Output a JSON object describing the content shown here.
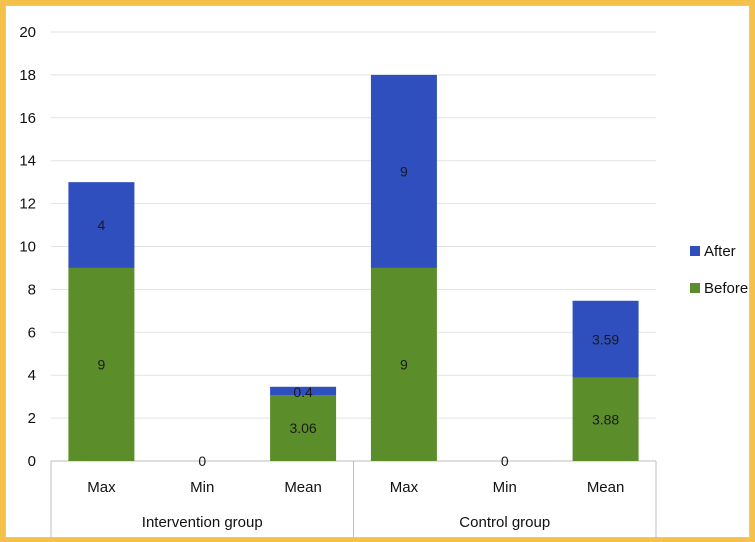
{
  "chart_data": {
    "type": "bar",
    "stacked": true,
    "ylim": [
      0,
      20
    ],
    "yticks": [
      0,
      2,
      4,
      6,
      8,
      10,
      12,
      14,
      16,
      18,
      20
    ],
    "grid": true,
    "legend_position": "right",
    "groups": [
      {
        "label": "Intervention group",
        "categories": [
          "Max",
          "Min",
          "Mean"
        ]
      },
      {
        "label": "Control group",
        "categories": [
          "Max",
          "Min",
          "Mean"
        ]
      }
    ],
    "categories": [
      "Max",
      "Min",
      "Mean",
      "Max",
      "Min",
      "Mean"
    ],
    "series": [
      {
        "name": "Before",
        "color": "#5b8e2b",
        "values": [
          9,
          0,
          3.06,
          9,
          0,
          3.88
        ],
        "labels": [
          "9",
          "0",
          "3.06",
          "9",
          "0",
          "3.88"
        ]
      },
      {
        "name": "After",
        "color": "#2f4fbf",
        "values": [
          4,
          0,
          0.4,
          9,
          0,
          3.59
        ],
        "labels": [
          "4",
          "",
          "0.4",
          "9",
          "",
          "3.59"
        ]
      }
    ],
    "legend": [
      {
        "name": "After",
        "color": "#2f4fbf"
      },
      {
        "name": "Before",
        "color": "#5b8e2b"
      }
    ]
  }
}
